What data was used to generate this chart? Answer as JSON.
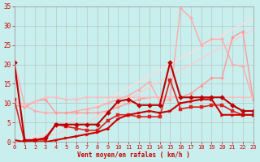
{
  "background_color": "#c8eeed",
  "grid_color": "#b0b0b0",
  "text_color": "#cc0000",
  "xlabel": "Vent moyen/en rafales ( km/h )",
  "xlim": [
    0,
    23
  ],
  "ylim": [
    0,
    35
  ],
  "xticks": [
    0,
    1,
    2,
    3,
    4,
    5,
    6,
    7,
    8,
    9,
    10,
    11,
    12,
    13,
    14,
    15,
    16,
    17,
    18,
    19,
    20,
    21,
    22,
    23
  ],
  "yticks": [
    0,
    5,
    10,
    15,
    20,
    25,
    30,
    35
  ],
  "series": [
    {
      "x": [
        0,
        1,
        2,
        3,
        4,
        5,
        6,
        7,
        8,
        9,
        10,
        11,
        12,
        13,
        14,
        15,
        16,
        17,
        18,
        19,
        20,
        21,
        22,
        23
      ],
      "y": [
        0.0,
        0.5,
        1.0,
        1.5,
        2.0,
        3.0,
        4.0,
        5.0,
        6.5,
        8.0,
        9.5,
        11.0,
        12.5,
        14.0,
        15.5,
        17.0,
        18.5,
        20.0,
        21.5,
        23.0,
        24.5,
        26.0,
        27.5,
        29.0
      ],
      "color": "#ffcccc",
      "linewidth": 1.0,
      "marker": null,
      "markersize": 0
    },
    {
      "x": [
        0,
        1,
        2,
        3,
        4,
        5,
        6,
        7,
        8,
        9,
        10,
        11,
        12,
        13,
        14,
        15,
        16,
        17,
        18,
        19,
        20,
        21,
        22,
        23
      ],
      "y": [
        0.0,
        0.5,
        1.5,
        2.5,
        3.5,
        5.0,
        6.5,
        8.0,
        9.5,
        11.0,
        12.5,
        14.0,
        15.5,
        17.0,
        18.5,
        20.0,
        21.5,
        23.0,
        24.5,
        26.0,
        27.5,
        29.0,
        30.5,
        32.0
      ],
      "color": "#ffdddd",
      "linewidth": 1.0,
      "marker": null,
      "markersize": 0
    },
    {
      "x": [
        0,
        1,
        2,
        3,
        4,
        5,
        6,
        7,
        8,
        9,
        10,
        11,
        12,
        13,
        14,
        15,
        16,
        17,
        18,
        19,
        20,
        21,
        22,
        23
      ],
      "y": [
        20.5,
        9.5,
        8.0,
        7.5,
        7.5,
        7.5,
        8.0,
        8.5,
        9.0,
        10.0,
        11.0,
        12.0,
        13.5,
        15.5,
        10.5,
        11.0,
        34.5,
        32.0,
        25.0,
        26.5,
        26.5,
        20.0,
        19.5,
        11.0
      ],
      "color": "#ffaaaa",
      "linewidth": 1.0,
      "marker": "D",
      "markersize": 2
    },
    {
      "x": [
        0,
        1,
        2,
        3,
        4,
        5,
        6,
        7,
        8,
        9,
        10,
        11,
        12,
        13,
        14,
        15,
        16,
        17,
        18,
        19,
        20,
        21,
        22,
        23
      ],
      "y": [
        9.5,
        9.0,
        10.5,
        11.0,
        7.5,
        7.5,
        7.5,
        7.5,
        7.5,
        8.0,
        9.0,
        10.0,
        11.0,
        11.5,
        11.5,
        11.5,
        11.5,
        12.5,
        14.5,
        16.5,
        16.5,
        27.0,
        28.5,
        11.0
      ],
      "color": "#ff9999",
      "linewidth": 1.0,
      "marker": "D",
      "markersize": 2
    },
    {
      "x": [
        0,
        1,
        2,
        3,
        4,
        5,
        6,
        7,
        8,
        9,
        10,
        11,
        12,
        13,
        14,
        15,
        16,
        17,
        18,
        19,
        20,
        21,
        22,
        23
      ],
      "y": [
        10.5,
        9.5,
        10.5,
        11.5,
        11.5,
        11.0,
        11.0,
        11.5,
        11.5,
        11.5,
        11.5,
        11.5,
        11.5,
        11.5,
        11.5,
        11.5,
        11.5,
        11.5,
        11.5,
        11.5,
        11.5,
        11.5,
        11.5,
        11.5
      ],
      "color": "#ffbbbb",
      "linewidth": 1.0,
      "marker": "D",
      "markersize": 2
    },
    {
      "x": [
        0,
        1,
        2,
        3,
        4,
        5,
        6,
        7,
        8,
        9,
        10,
        11,
        12,
        13,
        14,
        15,
        16,
        17,
        18,
        19,
        20,
        21,
        22,
        23
      ],
      "y": [
        11.0,
        0.0,
        0.5,
        0.5,
        4.5,
        4.0,
        3.5,
        3.0,
        3.0,
        5.5,
        7.0,
        7.0,
        6.5,
        6.5,
        6.5,
        16.0,
        8.5,
        9.0,
        9.0,
        9.5,
        9.5,
        8.0,
        7.0,
        7.0
      ],
      "color": "#dd2222",
      "linewidth": 1.2,
      "marker": "s",
      "markersize": 2.5
    },
    {
      "x": [
        0,
        1,
        2,
        3,
        4,
        5,
        6,
        7,
        8,
        9,
        10,
        11,
        12,
        13,
        14,
        15,
        16,
        17,
        18,
        19,
        20,
        21,
        22,
        23
      ],
      "y": [
        20.5,
        0.5,
        0.5,
        1.0,
        4.5,
        4.5,
        4.5,
        4.5,
        4.5,
        7.5,
        10.5,
        11.0,
        9.5,
        9.5,
        9.5,
        20.5,
        11.5,
        11.5,
        11.5,
        11.5,
        11.5,
        9.5,
        8.0,
        8.0
      ],
      "color": "#bb0000",
      "linewidth": 1.5,
      "marker": "D",
      "markersize": 3
    },
    {
      "x": [
        0,
        1,
        2,
        3,
        4,
        5,
        6,
        7,
        8,
        9,
        10,
        11,
        12,
        13,
        14,
        15,
        16,
        17,
        18,
        19,
        20,
        21,
        22,
        23
      ],
      "y": [
        0.5,
        0.0,
        0.0,
        0.0,
        0.5,
        1.0,
        1.5,
        2.0,
        2.5,
        3.5,
        6.0,
        7.0,
        7.5,
        8.0,
        7.5,
        8.0,
        10.0,
        10.5,
        11.0,
        11.0,
        7.0,
        7.0,
        7.0,
        7.0
      ],
      "color": "#cc0000",
      "linewidth": 1.5,
      "marker": ">",
      "markersize": 2.5
    }
  ]
}
